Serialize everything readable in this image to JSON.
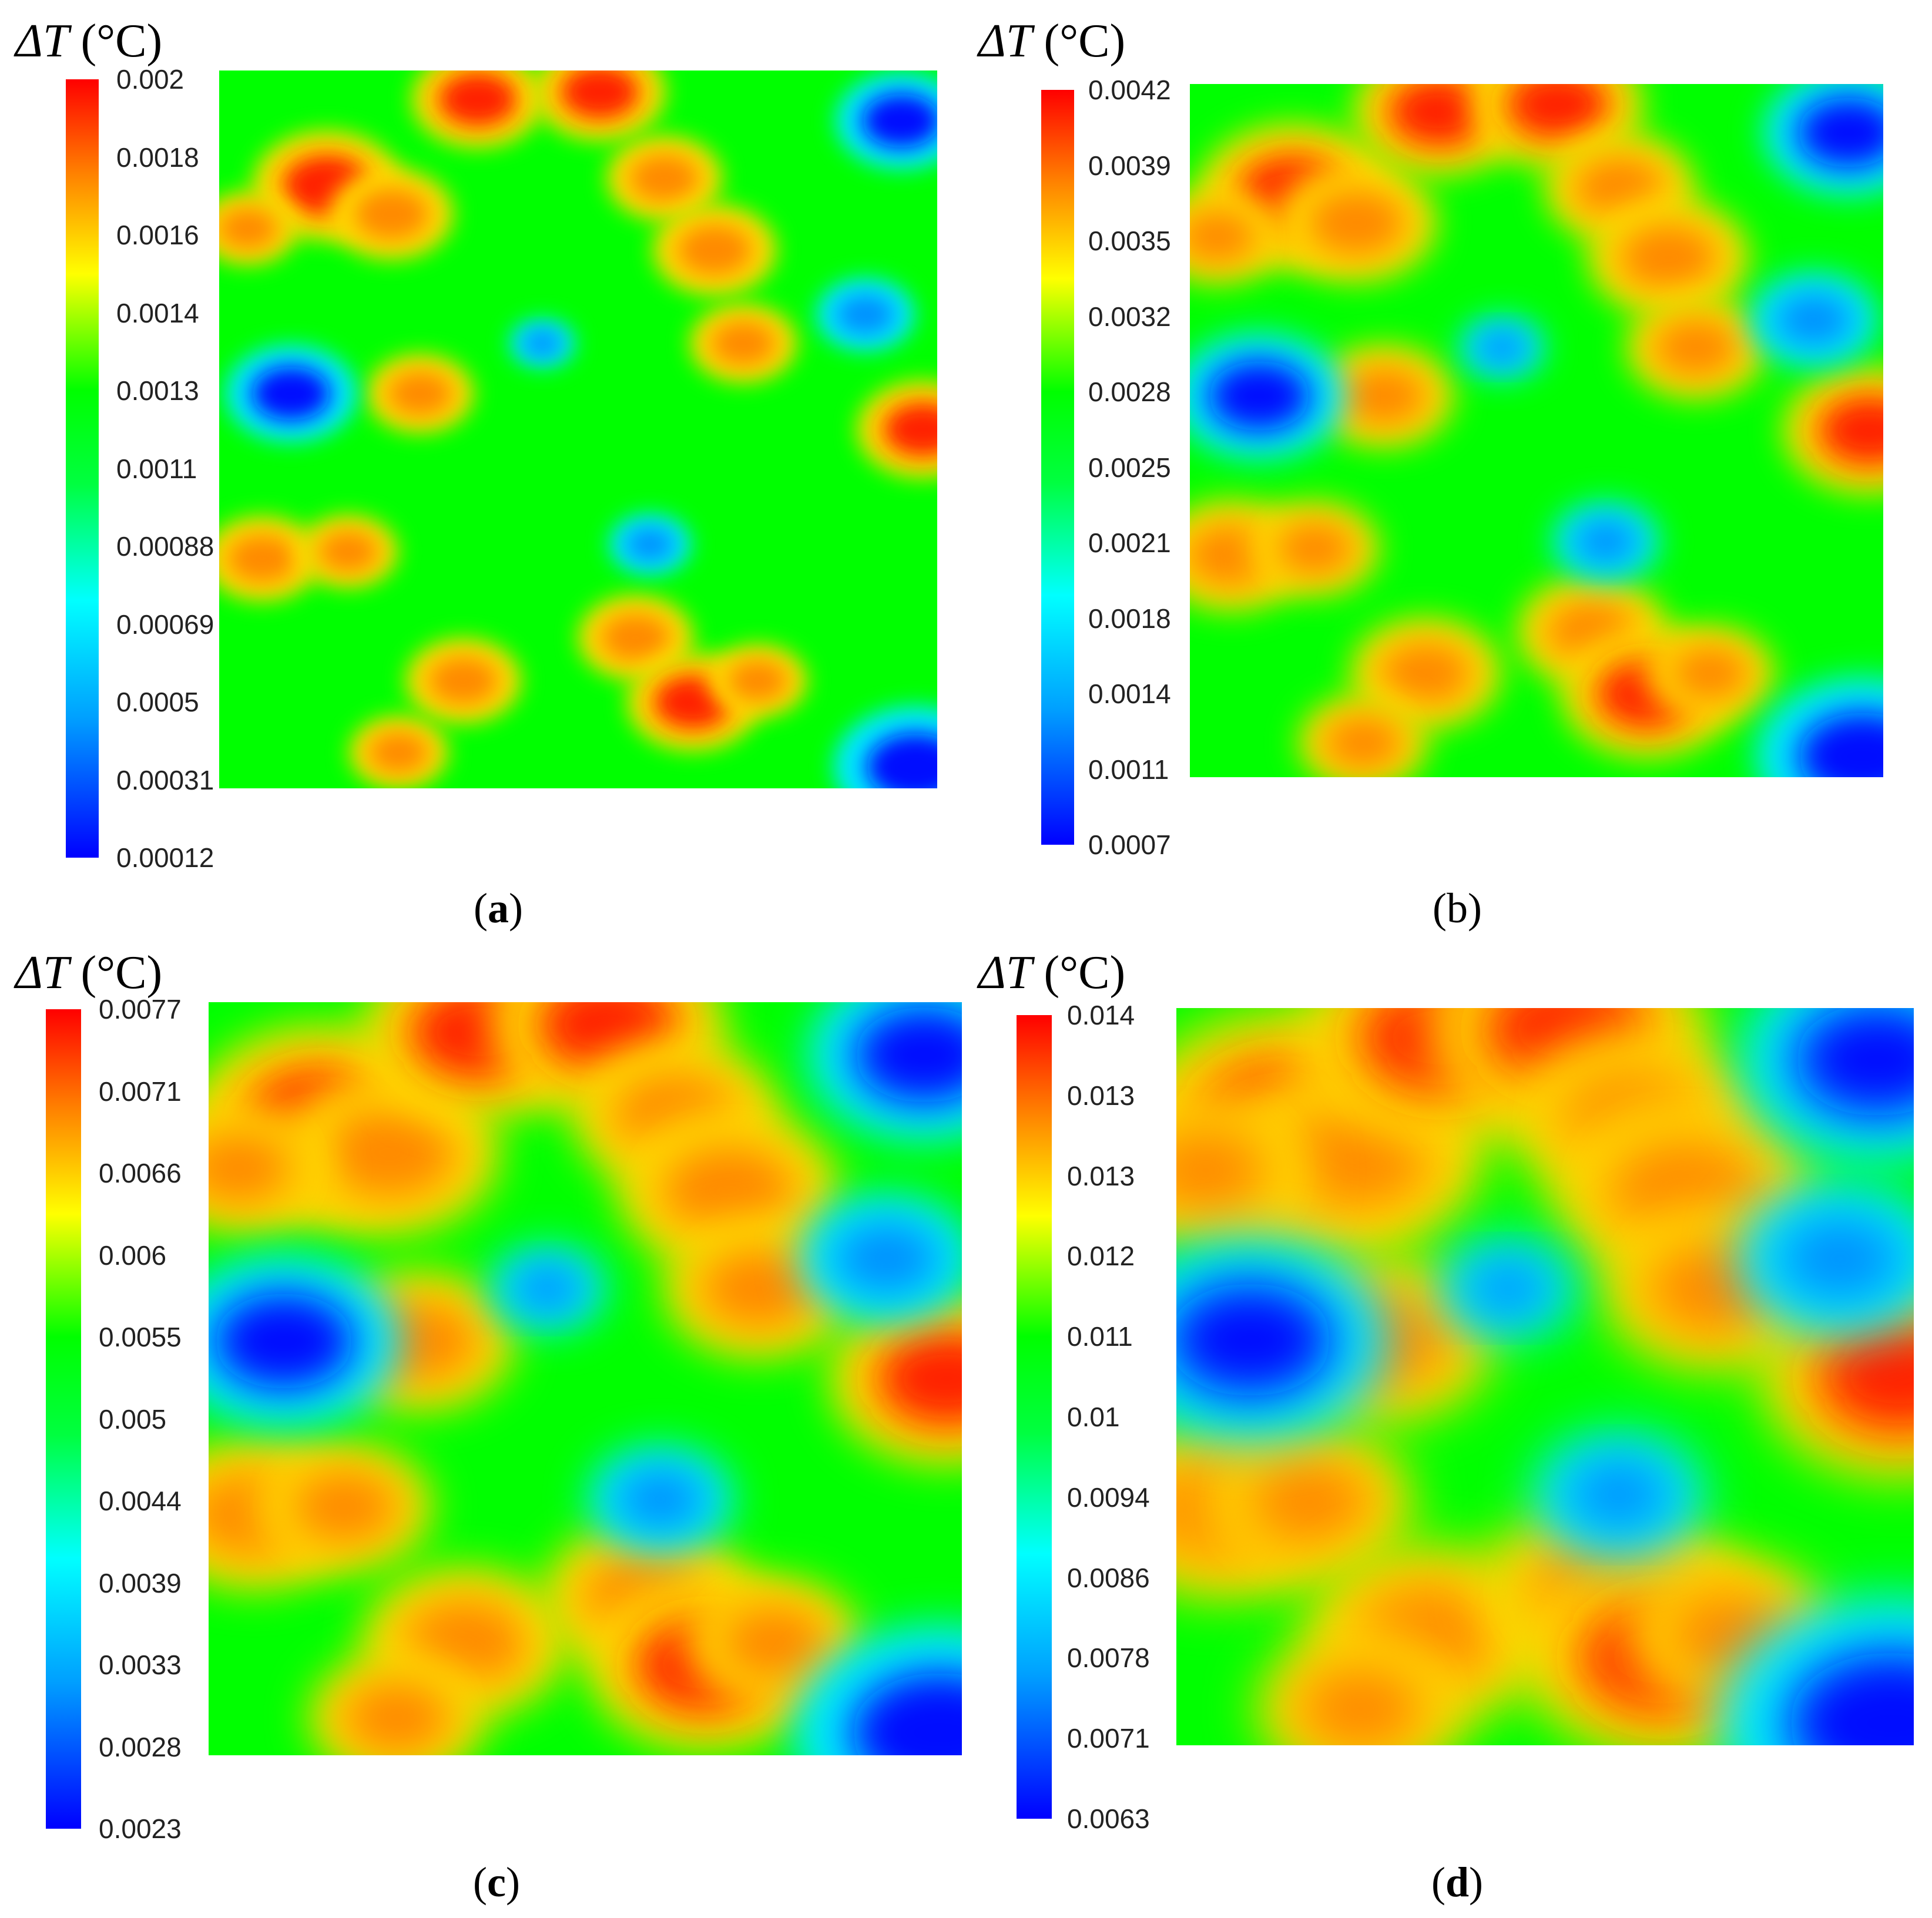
{
  "chart_data": [
    {
      "type": "heatmap",
      "panel": "a",
      "panel_label": "a",
      "colorbar_title_symbol": "ΔT",
      "colorbar_title_unit": "(°C)",
      "colorbar_ticks": [
        "0.002",
        "0.0018",
        "0.0016",
        "0.0014",
        "0.0013",
        "0.0011",
        "0.00088",
        "0.00069",
        "0.0005",
        "0.00031",
        "0.00012"
      ],
      "range": [
        0.00012,
        0.002
      ],
      "colors": {
        "high": "#ff0000",
        "mid": "#00ff00",
        "low": "#0000ff"
      }
    },
    {
      "type": "heatmap",
      "panel": "b",
      "panel_label": "b",
      "colorbar_title_symbol": "ΔT",
      "colorbar_title_unit": "(°C)",
      "colorbar_ticks": [
        "0.0042",
        "0.0039",
        "0.0035",
        "0.0032",
        "0.0028",
        "0.0025",
        "0.0021",
        "0.0018",
        "0.0014",
        "0.0011",
        "0.0007"
      ],
      "range": [
        0.0007,
        0.0042
      ],
      "colors": {
        "high": "#ff0000",
        "mid": "#00ff00",
        "low": "#0000ff"
      }
    },
    {
      "type": "heatmap",
      "panel": "c",
      "panel_label": "c",
      "colorbar_title_symbol": "ΔT",
      "colorbar_title_unit": "(°C)",
      "colorbar_ticks": [
        "0.0077",
        "0.0071",
        "0.0066",
        "0.006",
        "0.0055",
        "0.005",
        "0.0044",
        "0.0039",
        "0.0033",
        "0.0028",
        "0.0023"
      ],
      "range": [
        0.0023,
        0.0077
      ],
      "colors": {
        "high": "#ff0000",
        "mid": "#00ff00",
        "low": "#0000ff"
      }
    },
    {
      "type": "heatmap",
      "panel": "d",
      "panel_label": "d",
      "colorbar_title_symbol": "ΔT",
      "colorbar_title_unit": "(°C)",
      "colorbar_ticks": [
        "0.014",
        "0.013",
        "0.013",
        "0.012",
        "0.011",
        "0.01",
        "0.0094",
        "0.0086",
        "0.0078",
        "0.0071",
        "0.0063"
      ],
      "range": [
        0.0063,
        0.014
      ],
      "colors": {
        "high": "#ff0000",
        "mid": "#00ff00",
        "low": "#0000ff"
      }
    }
  ]
}
